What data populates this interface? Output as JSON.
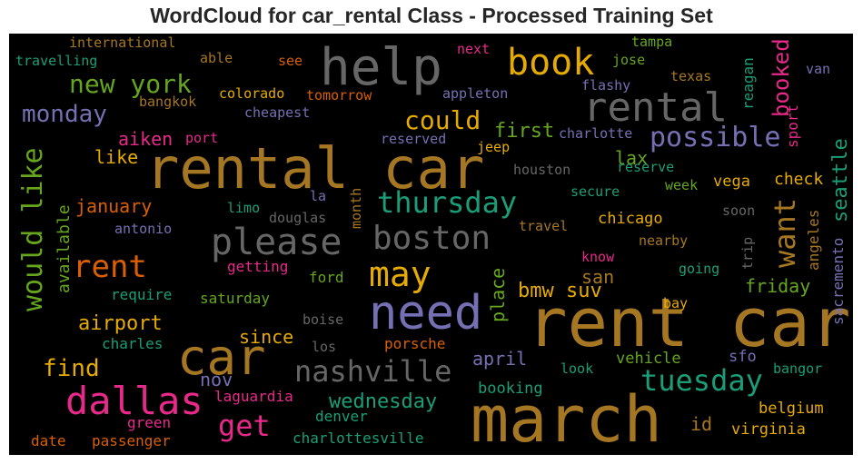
{
  "chart_data": {
    "type": "wordcloud",
    "title": "WordCloud for car_rental Class - Processed Training Set",
    "background": "#000000",
    "words": [
      {
        "text": "rent car",
        "weight": 1.0,
        "color": "#a67722",
        "rotated": false
      },
      {
        "text": "march",
        "weight": 0.95,
        "color": "#a67722",
        "rotated": false
      },
      {
        "text": "rental car",
        "weight": 0.92,
        "color": "#a67722",
        "rotated": false
      },
      {
        "text": "help",
        "weight": 0.78,
        "color": "#666666",
        "rotated": false
      },
      {
        "text": "need",
        "weight": 0.72,
        "color": "#7570b3",
        "rotated": false
      },
      {
        "text": "car",
        "weight": 0.7,
        "color": "#a67722",
        "rotated": false
      },
      {
        "text": "rental",
        "weight": 0.6,
        "color": "#666666",
        "rotated": false
      },
      {
        "text": "dallas",
        "weight": 0.58,
        "color": "#e7298a",
        "rotated": false
      },
      {
        "text": "please",
        "weight": 0.55,
        "color": "#666666",
        "rotated": false
      },
      {
        "text": "book",
        "weight": 0.55,
        "color": "#e6ab02",
        "rotated": false
      },
      {
        "text": "boston",
        "weight": 0.5,
        "color": "#666666",
        "rotated": false
      },
      {
        "text": "may",
        "weight": 0.5,
        "color": "#e6ab02",
        "rotated": false
      },
      {
        "text": "rent",
        "weight": 0.48,
        "color": "#d95f02",
        "rotated": false
      },
      {
        "text": "nashville",
        "weight": 0.46,
        "color": "#666666",
        "rotated": false
      },
      {
        "text": "tuesday",
        "weight": 0.44,
        "color": "#1b9e77",
        "rotated": false
      },
      {
        "text": "thursday",
        "weight": 0.44,
        "color": "#1b9e77",
        "rotated": false
      },
      {
        "text": "possible",
        "weight": 0.42,
        "color": "#7570b3",
        "rotated": false
      },
      {
        "text": "get",
        "weight": 0.42,
        "color": "#e7298a",
        "rotated": false
      },
      {
        "text": "would like",
        "weight": 0.42,
        "color": "#66a61e",
        "rotated": true
      },
      {
        "text": "want",
        "weight": 0.42,
        "color": "#a67722",
        "rotated": true
      },
      {
        "text": "new york",
        "weight": 0.38,
        "color": "#66a61e",
        "rotated": false
      },
      {
        "text": "could",
        "weight": 0.36,
        "color": "#e6ab02",
        "rotated": false
      },
      {
        "text": "find",
        "weight": 0.35,
        "color": "#e6ab02",
        "rotated": false
      },
      {
        "text": "monday",
        "weight": 0.34,
        "color": "#7570b3",
        "rotated": false
      },
      {
        "text": "booked",
        "weight": 0.33,
        "color": "#e7298a",
        "rotated": true
      },
      {
        "text": "wednesday",
        "weight": 0.3,
        "color": "#1b9e77",
        "rotated": false
      },
      {
        "text": "bmw suv",
        "weight": 0.3,
        "color": "#e6ab02",
        "rotated": false
      },
      {
        "text": "place",
        "weight": 0.28,
        "color": "#66a61e",
        "rotated": true
      },
      {
        "text": "seattle",
        "weight": 0.28,
        "color": "#1b9e77",
        "rotated": true
      },
      {
        "text": "airport",
        "weight": 0.28,
        "color": "#e6ab02",
        "rotated": false
      },
      {
        "text": "first",
        "weight": 0.28,
        "color": "#66a61e",
        "rotated": false
      },
      {
        "text": "friday",
        "weight": 0.27,
        "color": "#66a61e",
        "rotated": false
      },
      {
        "text": "april",
        "weight": 0.27,
        "color": "#7570b3",
        "rotated": false
      },
      {
        "text": "january",
        "weight": 0.26,
        "color": "#d95f02",
        "rotated": false
      },
      {
        "text": "since",
        "weight": 0.26,
        "color": "#e6ab02",
        "rotated": false
      },
      {
        "text": "san",
        "weight": 0.26,
        "color": "#a67722",
        "rotated": false
      },
      {
        "text": "id",
        "weight": 0.26,
        "color": "#a67722",
        "rotated": false
      },
      {
        "text": "aiken",
        "weight": 0.26,
        "color": "#e7298a",
        "rotated": false
      },
      {
        "text": "lax",
        "weight": 0.25,
        "color": "#66a61e",
        "rotated": false
      },
      {
        "text": "like",
        "weight": 0.24,
        "color": "#e6ab02",
        "rotated": false
      },
      {
        "text": "nov",
        "weight": 0.24,
        "color": "#7570b3",
        "rotated": false
      },
      {
        "text": "available",
        "weight": 0.24,
        "color": "#66a61e",
        "rotated": true
      },
      {
        "text": "sacremento",
        "weight": 0.22,
        "color": "#7570b3",
        "rotated": true
      },
      {
        "text": "sport",
        "weight": 0.22,
        "color": "#e7298a",
        "rotated": true
      },
      {
        "text": "angeles",
        "weight": 0.2,
        "color": "#a67722",
        "rotated": true
      },
      {
        "text": "reagan",
        "weight": 0.2,
        "color": "#1b9e77",
        "rotated": true
      },
      {
        "text": "month",
        "weight": 0.2,
        "color": "#a67722",
        "rotated": true
      },
      {
        "text": "trip",
        "weight": 0.2,
        "color": "#666666",
        "rotated": true
      },
      {
        "text": "check",
        "weight": 0.22,
        "color": "#e6ab02",
        "rotated": false
      },
      {
        "text": "chicago",
        "weight": 0.21,
        "color": "#e6ab02",
        "rotated": false
      },
      {
        "text": "vega",
        "weight": 0.21,
        "color": "#e6ab02",
        "rotated": false
      },
      {
        "text": "sfo",
        "weight": 0.21,
        "color": "#7570b3",
        "rotated": false
      },
      {
        "text": "belgium",
        "weight": 0.21,
        "color": "#e6ab02",
        "rotated": false
      },
      {
        "text": "virginia",
        "weight": 0.21,
        "color": "#e6ab02",
        "rotated": false
      },
      {
        "text": "vehicle",
        "weight": 0.21,
        "color": "#66a61e",
        "rotated": false
      },
      {
        "text": "booking",
        "weight": 0.2,
        "color": "#1b9e77",
        "rotated": false
      },
      {
        "text": "porsche",
        "weight": 0.2,
        "color": "#d95f02",
        "rotated": false
      },
      {
        "text": "laguardia",
        "weight": 0.2,
        "color": "#e7298a",
        "rotated": false
      },
      {
        "text": "denver",
        "weight": 0.2,
        "color": "#1b9e77",
        "rotated": false
      },
      {
        "text": "charlottesville",
        "weight": 0.2,
        "color": "#1b9e77",
        "rotated": false
      },
      {
        "text": "green",
        "weight": 0.2,
        "color": "#e7298a",
        "rotated": false
      },
      {
        "text": "date",
        "weight": 0.19,
        "color": "#d95f02",
        "rotated": false
      },
      {
        "text": "passenger",
        "weight": 0.19,
        "color": "#d95f02",
        "rotated": false
      },
      {
        "text": "charles",
        "weight": 0.19,
        "color": "#1b9e77",
        "rotated": false
      },
      {
        "text": "require",
        "weight": 0.19,
        "color": "#1b9e77",
        "rotated": false
      },
      {
        "text": "saturday",
        "weight": 0.19,
        "color": "#66a61e",
        "rotated": false
      },
      {
        "text": "ford",
        "weight": 0.19,
        "color": "#66a61e",
        "rotated": false
      },
      {
        "text": "getting",
        "weight": 0.19,
        "color": "#e7298a",
        "rotated": false
      },
      {
        "text": "boise",
        "weight": 0.19,
        "color": "#666666",
        "rotated": false
      },
      {
        "text": "los",
        "weight": 0.19,
        "color": "#666666",
        "rotated": false
      },
      {
        "text": "look",
        "weight": 0.19,
        "color": "#1b9e77",
        "rotated": false
      },
      {
        "text": "bangor",
        "weight": 0.19,
        "color": "#1b9e77",
        "rotated": false
      },
      {
        "text": "bay",
        "weight": 0.19,
        "color": "#e6ab02",
        "rotated": false
      },
      {
        "text": "going",
        "weight": 0.19,
        "color": "#1b9e77",
        "rotated": false
      },
      {
        "text": "know",
        "weight": 0.19,
        "color": "#e7298a",
        "rotated": false
      },
      {
        "text": "nearby",
        "weight": 0.19,
        "color": "#a67722",
        "rotated": false
      },
      {
        "text": "travel",
        "weight": 0.19,
        "color": "#a67722",
        "rotated": false
      },
      {
        "text": "soon",
        "weight": 0.19,
        "color": "#666666",
        "rotated": false
      },
      {
        "text": "week",
        "weight": 0.19,
        "color": "#66a61e",
        "rotated": false
      },
      {
        "text": "secure",
        "weight": 0.19,
        "color": "#1b9e77",
        "rotated": false
      },
      {
        "text": "reserve",
        "weight": 0.19,
        "color": "#1b9e77",
        "rotated": false
      },
      {
        "text": "houston",
        "weight": 0.19,
        "color": "#666666",
        "rotated": false
      },
      {
        "text": "jeep",
        "weight": 0.19,
        "color": "#e6ab02",
        "rotated": false
      },
      {
        "text": "charlotte",
        "weight": 0.19,
        "color": "#7570b3",
        "rotated": false
      },
      {
        "text": "reserved",
        "weight": 0.19,
        "color": "#7570b3",
        "rotated": false
      },
      {
        "text": "douglas",
        "weight": 0.19,
        "color": "#666666",
        "rotated": false
      },
      {
        "text": "la",
        "weight": 0.19,
        "color": "#7570b3",
        "rotated": false
      },
      {
        "text": "limo",
        "weight": 0.19,
        "color": "#1b9e77",
        "rotated": false
      },
      {
        "text": "antonio",
        "weight": 0.19,
        "color": "#7570b3",
        "rotated": false
      },
      {
        "text": "port",
        "weight": 0.19,
        "color": "#e7298a",
        "rotated": false
      },
      {
        "text": "cheapest",
        "weight": 0.19,
        "color": "#7570b3",
        "rotated": false
      },
      {
        "text": "bangkok",
        "weight": 0.19,
        "color": "#a67722",
        "rotated": false
      },
      {
        "text": "colorado",
        "weight": 0.19,
        "color": "#e6ab02",
        "rotated": false
      },
      {
        "text": "tomorrow",
        "weight": 0.19,
        "color": "#d95f02",
        "rotated": false
      },
      {
        "text": "appleton",
        "weight": 0.19,
        "color": "#7570b3",
        "rotated": false
      },
      {
        "text": "flashy",
        "weight": 0.19,
        "color": "#7570b3",
        "rotated": false
      },
      {
        "text": "texas",
        "weight": 0.19,
        "color": "#a67722",
        "rotated": false
      },
      {
        "text": "jose",
        "weight": 0.19,
        "color": "#66a61e",
        "rotated": false
      },
      {
        "text": "van",
        "weight": 0.19,
        "color": "#7570b3",
        "rotated": false
      },
      {
        "text": "tampa",
        "weight": 0.19,
        "color": "#66a61e",
        "rotated": false
      },
      {
        "text": "next",
        "weight": 0.19,
        "color": "#e7298a",
        "rotated": false
      },
      {
        "text": "see",
        "weight": 0.19,
        "color": "#d95f02",
        "rotated": false
      },
      {
        "text": "able",
        "weight": 0.19,
        "color": "#a67722",
        "rotated": false
      },
      {
        "text": "international",
        "weight": 0.19,
        "color": "#a67722",
        "rotated": false
      },
      {
        "text": "travelling",
        "weight": 0.19,
        "color": "#1b9e77",
        "rotated": false
      }
    ]
  }
}
